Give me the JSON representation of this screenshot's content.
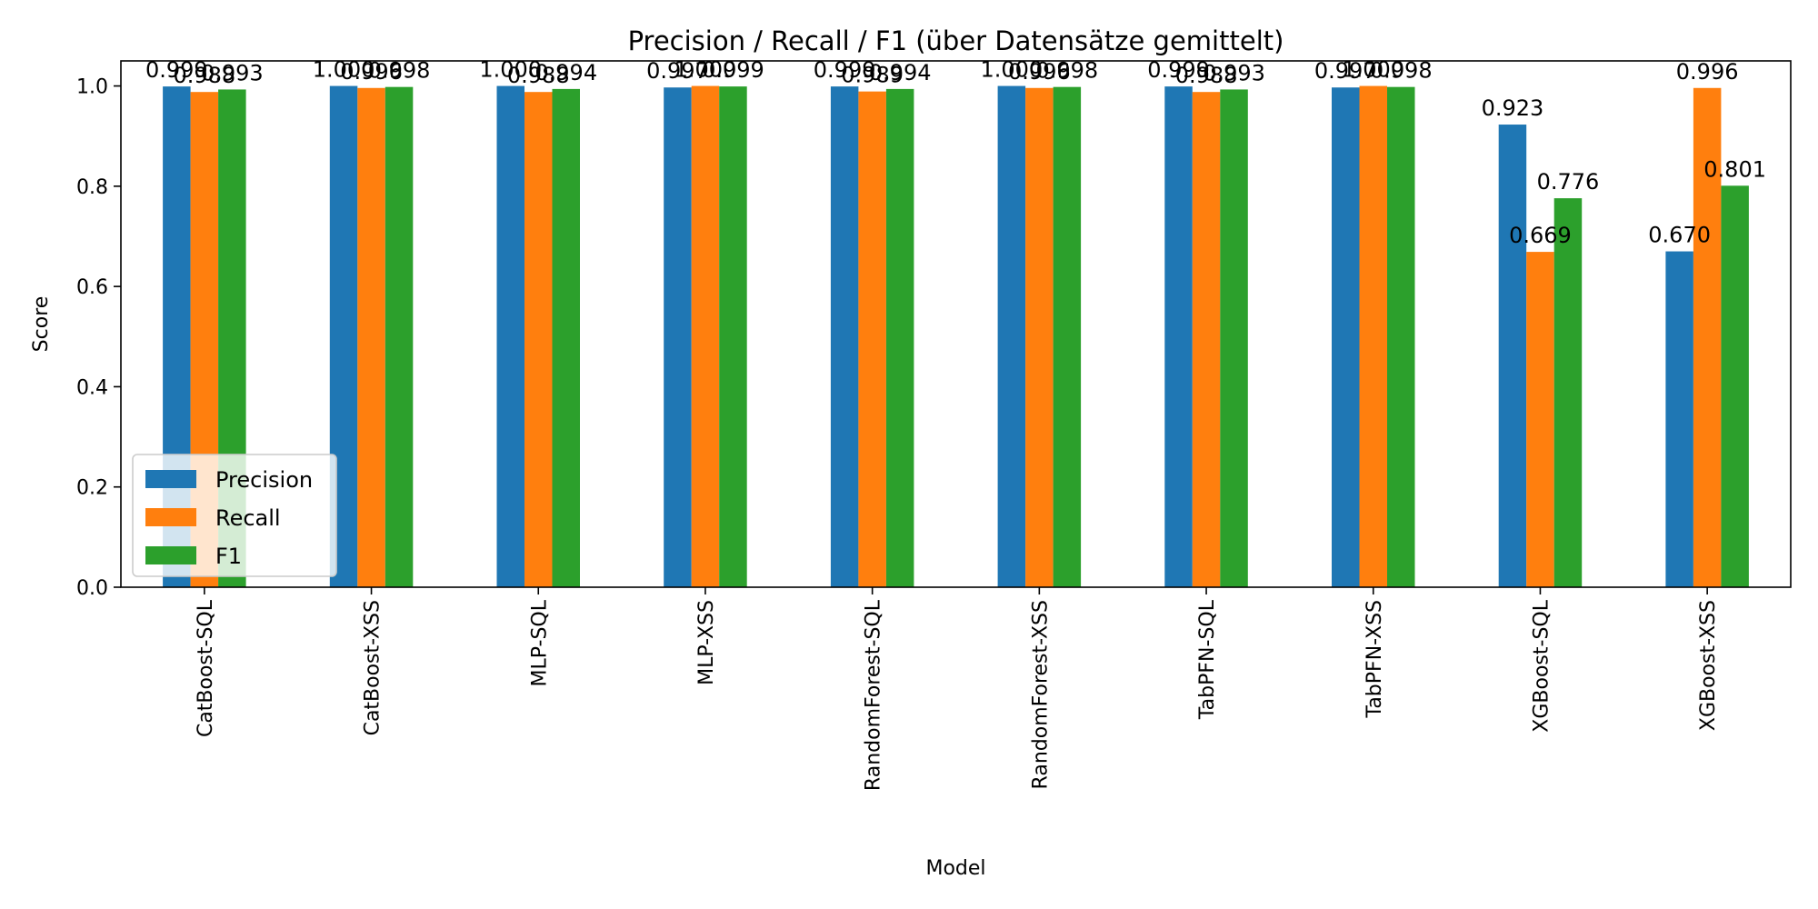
{
  "chart_data": {
    "type": "bar",
    "title": "Precision / Recall / F1 (über Datensätze gemittelt)",
    "xlabel": "Model",
    "ylabel": "Score",
    "ylim": [
      0,
      1.05
    ],
    "yticks": [
      "0.0",
      "0.2",
      "0.4",
      "0.6",
      "0.8",
      "1.0"
    ],
    "grid": false,
    "legend_position": "lower-left",
    "categories": [
      "CatBoost-SQL",
      "CatBoost-XSS",
      "MLP-SQL",
      "MLP-XSS",
      "RandomForest-SQL",
      "RandomForest-XSS",
      "TabPFN-SQL",
      "TabPFN-XSS",
      "XGBoost-SQL",
      "XGBoost-XSS"
    ],
    "series": [
      {
        "name": "Precision",
        "color": "#1f77b4",
        "values": [
          0.999,
          1.0,
          1.0,
          0.997,
          0.999,
          1.0,
          0.999,
          0.997,
          0.923,
          0.67
        ],
        "labels": [
          "0.999",
          "1.000",
          "1.000",
          "0.997",
          "0.999",
          "1.000",
          "0.999",
          "0.997",
          "0.923",
          "0.670"
        ]
      },
      {
        "name": "Recall",
        "color": "#ff7f0e",
        "values": [
          0.988,
          0.996,
          0.988,
          1.0,
          0.989,
          0.996,
          0.988,
          1.0,
          0.669,
          0.996
        ],
        "labels": [
          "0.988",
          "0.996",
          "0.988",
          "1.000",
          "0.989",
          "0.996",
          "0.988",
          "1.000",
          "0.669",
          "0.996"
        ]
      },
      {
        "name": "F1",
        "color": "#2ca02c",
        "values": [
          0.993,
          0.998,
          0.994,
          0.999,
          0.994,
          0.998,
          0.993,
          0.998,
          0.776,
          0.801
        ],
        "labels": [
          "0.993",
          "0.998",
          "0.994",
          "0.999",
          "0.994",
          "0.998",
          "0.993",
          "0.998",
          "0.776",
          "0.801"
        ]
      }
    ]
  }
}
